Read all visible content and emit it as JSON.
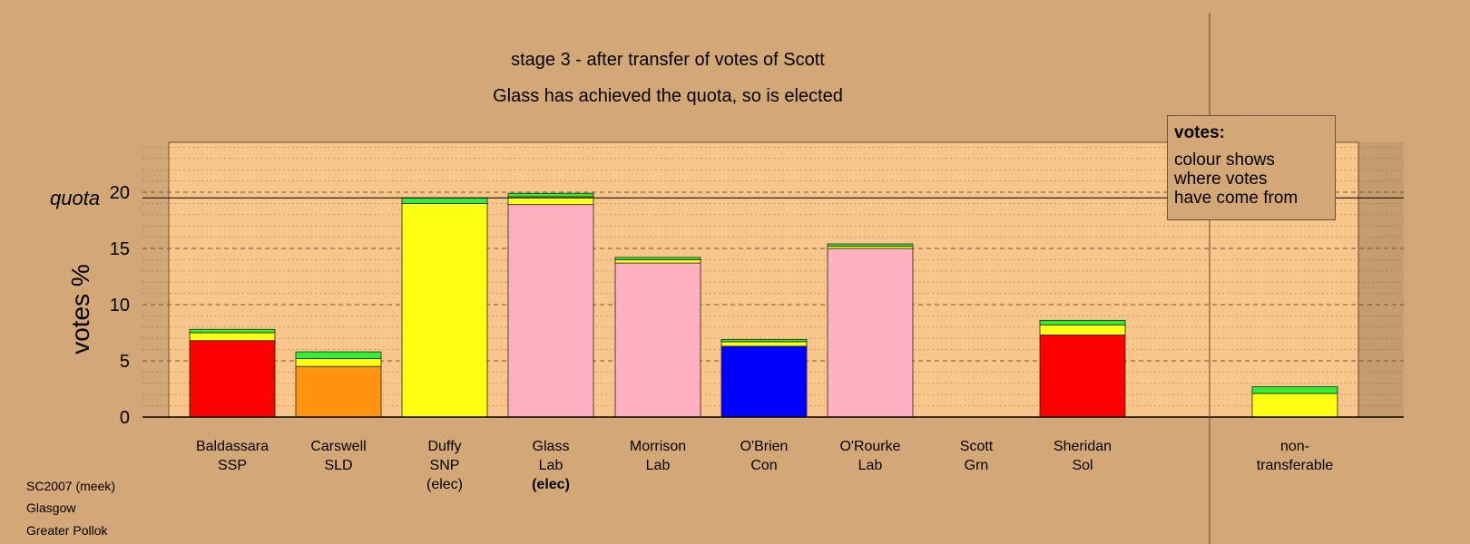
{
  "title": "stage 3 - after transfer of votes of Scott",
  "subtitle": "Glass has achieved the quota, so is elected",
  "footer": [
    "SC2007 (meek)",
    "Glasgow",
    "Greater Pollok"
  ],
  "legend": {
    "title": "votes:",
    "body": "colour shows\nwhere votes\nhave come from"
  },
  "colors": {
    "background": "#d4a876",
    "plot_area": "#f8c58a",
    "SSP": "#ff0000",
    "SLD": "#ff9410",
    "SNP": "#ffff14",
    "Lab": "#ffb0c0",
    "Con": "#0000ff",
    "Grn": "#33ee33",
    "Sol": "#ff0000"
  },
  "chart_data": {
    "type": "bar",
    "stacked": true,
    "ylabel": "votes %",
    "ylim": [
      0,
      25
    ],
    "yticks": [
      0,
      5,
      10,
      15,
      20
    ],
    "quota": {
      "label": "quota",
      "value": 19.5
    },
    "categories": [
      {
        "name": "Baldassara",
        "party": "SSP",
        "note": ""
      },
      {
        "name": "Carswell",
        "party": "SLD",
        "note": ""
      },
      {
        "name": "Duffy",
        "party": "SNP",
        "note": "(elec)"
      },
      {
        "name": "Glass",
        "party": "Lab",
        "note": "(elec)",
        "note_bold": true
      },
      {
        "name": "Morrison",
        "party": "Lab",
        "note": ""
      },
      {
        "name": "O'Brien",
        "party": "Con",
        "note": ""
      },
      {
        "name": "O'Rourke",
        "party": "Lab",
        "note": ""
      },
      {
        "name": "Scott",
        "party": "Grn",
        "note": ""
      },
      {
        "name": "Sheridan",
        "party": "Sol",
        "note": ""
      },
      {
        "name": "non-",
        "party": "transferable",
        "note": ""
      }
    ],
    "segments": [
      [
        {
          "from": "SSP",
          "value": 6.8
        },
        {
          "from": "SNP",
          "value": 0.7
        },
        {
          "from": "Grn",
          "value": 0.3
        }
      ],
      [
        {
          "from": "SLD",
          "value": 4.5
        },
        {
          "from": "SNP",
          "value": 0.7
        },
        {
          "from": "Grn",
          "value": 0.6
        }
      ],
      [
        {
          "from": "SNP",
          "value": 19.0
        },
        {
          "from": "Grn",
          "value": 0.5
        }
      ],
      [
        {
          "from": "Lab",
          "value": 18.9
        },
        {
          "from": "SNP",
          "value": 0.7
        },
        {
          "from": "Grn",
          "value": 0.3
        }
      ],
      [
        {
          "from": "Lab",
          "value": 13.7
        },
        {
          "from": "SNP",
          "value": 0.3
        },
        {
          "from": "Grn",
          "value": 0.2
        }
      ],
      [
        {
          "from": "Con",
          "value": 6.3
        },
        {
          "from": "SNP",
          "value": 0.4
        },
        {
          "from": "Grn",
          "value": 0.2
        }
      ],
      [
        {
          "from": "Lab",
          "value": 15.0
        },
        {
          "from": "SNP",
          "value": 0.2
        },
        {
          "from": "Grn",
          "value": 0.2
        }
      ],
      [
        {
          "from": "Grn",
          "value": 0.0
        }
      ],
      [
        {
          "from": "Sol",
          "value": 7.3
        },
        {
          "from": "SNP",
          "value": 0.9
        },
        {
          "from": "Grn",
          "value": 0.4
        }
      ],
      [
        {
          "from": "SNP",
          "value": 2.1
        },
        {
          "from": "Grn",
          "value": 0.6
        }
      ]
    ]
  }
}
